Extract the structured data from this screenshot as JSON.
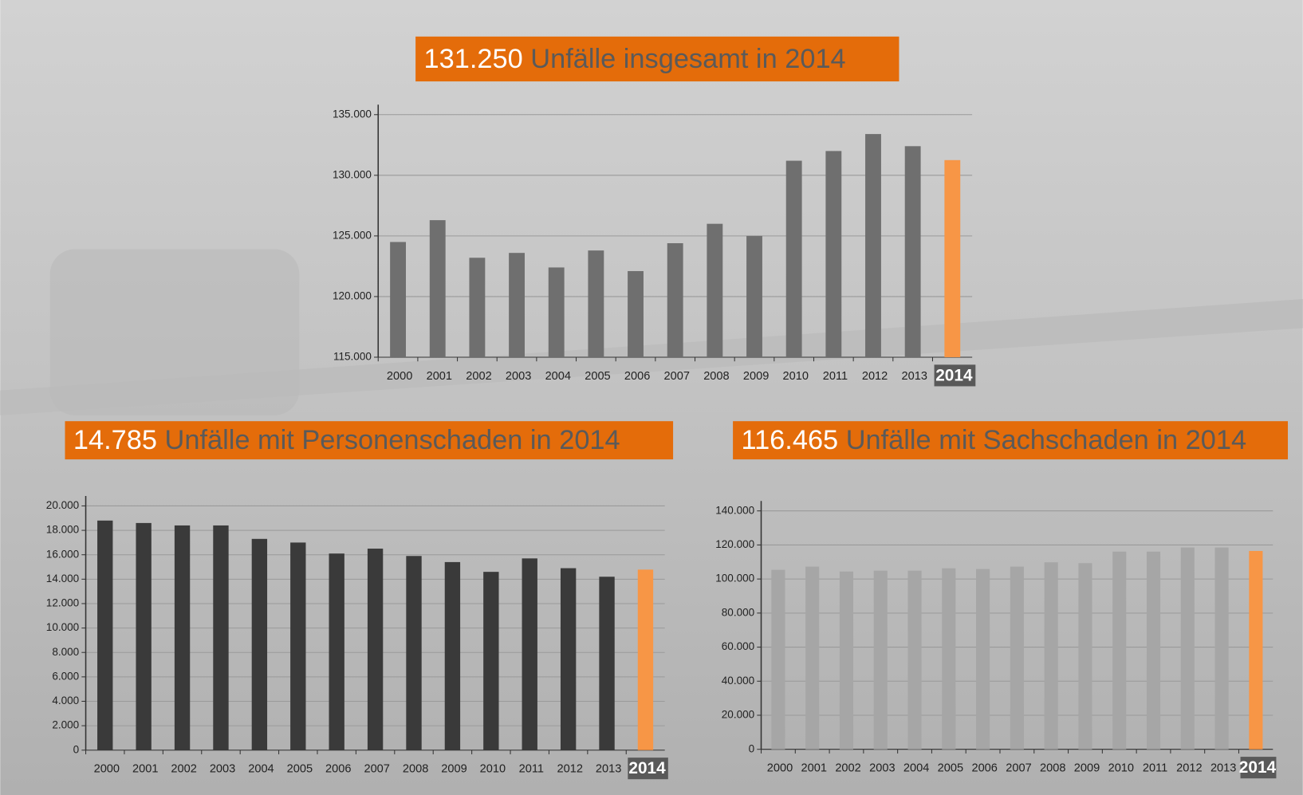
{
  "chart_data": [
    {
      "type": "bar",
      "title_number": "131.250",
      "title": "Unfälle insgesamt in 2014",
      "categories": [
        "2000",
        "2001",
        "2002",
        "2003",
        "2004",
        "2005",
        "2006",
        "2007",
        "2008",
        "2009",
        "2010",
        "2011",
        "2012",
        "2013",
        "2014"
      ],
      "values": [
        124500,
        126300,
        123200,
        123600,
        122400,
        123800,
        122100,
        124400,
        126000,
        125000,
        131200,
        132000,
        133400,
        132400,
        131250
      ],
      "colors": [
        "#6f6f6f",
        "#6f6f6f",
        "#6f6f6f",
        "#6f6f6f",
        "#6f6f6f",
        "#6f6f6f",
        "#6f6f6f",
        "#6f6f6f",
        "#6f6f6f",
        "#6f6f6f",
        "#6f6f6f",
        "#6f6f6f",
        "#6f6f6f",
        "#6f6f6f",
        "#f79646"
      ],
      "ylim": [
        115000,
        135000
      ],
      "yticks": [
        {
          "value": 115000,
          "label": "115.000"
        },
        {
          "value": 120000,
          "label": "120.000"
        },
        {
          "value": 125000,
          "label": "125.000"
        },
        {
          "value": 130000,
          "label": "130.000"
        },
        {
          "value": 135000,
          "label": "135.000"
        }
      ],
      "grid": true
    },
    {
      "type": "bar",
      "title_number": "14.785",
      "title": "Unfälle mit Personenschaden in 2014",
      "categories": [
        "2000",
        "2001",
        "2002",
        "2003",
        "2004",
        "2005",
        "2006",
        "2007",
        "2008",
        "2009",
        "2010",
        "2011",
        "2012",
        "2013",
        "2014"
      ],
      "values": [
        18800,
        18600,
        18400,
        18400,
        17300,
        17000,
        16100,
        16500,
        15900,
        15400,
        14600,
        15700,
        14900,
        14200,
        14785
      ],
      "colors": [
        "#3a3a3a",
        "#3a3a3a",
        "#3a3a3a",
        "#3a3a3a",
        "#3a3a3a",
        "#3a3a3a",
        "#3a3a3a",
        "#3a3a3a",
        "#3a3a3a",
        "#3a3a3a",
        "#3a3a3a",
        "#3a3a3a",
        "#3a3a3a",
        "#3a3a3a",
        "#f79646"
      ],
      "ylim": [
        0,
        20000
      ],
      "yticks": [
        0,
        {
          "value": 2000,
          "label": "2.000"
        },
        {
          "value": 4000,
          "label": "4.000"
        },
        {
          "value": 6000,
          "label": "6.000"
        },
        {
          "value": 8000,
          "label": "8.000"
        },
        {
          "value": 10000,
          "label": "10.000"
        },
        {
          "value": 12000,
          "label": "12.000"
        },
        {
          "value": 14000,
          "label": "14.000"
        },
        {
          "value": 16000,
          "label": "16.000"
        },
        {
          "value": 18000,
          "label": "18.000"
        },
        {
          "value": 20000,
          "label": "20.000"
        }
      ],
      "grid": true
    },
    {
      "type": "bar",
      "title_number": "116.465",
      "title": "Unfälle mit Sachschaden in 2014",
      "categories": [
        "2000",
        "2001",
        "2002",
        "2003",
        "2004",
        "2005",
        "2006",
        "2007",
        "2008",
        "2009",
        "2010",
        "2011",
        "2012",
        "2013",
        "2014"
      ],
      "values": [
        105400,
        107300,
        104400,
        104900,
        104900,
        106300,
        105900,
        107300,
        109800,
        109300,
        116100,
        116100,
        118500,
        118500,
        116465
      ],
      "colors": [
        "#a6a6a6",
        "#a6a6a6",
        "#a6a6a6",
        "#a6a6a6",
        "#a6a6a6",
        "#a6a6a6",
        "#a6a6a6",
        "#a6a6a6",
        "#a6a6a6",
        "#a6a6a6",
        "#a6a6a6",
        "#a6a6a6",
        "#a6a6a6",
        "#a6a6a6",
        "#f79646"
      ],
      "ylim": [
        0,
        140000
      ],
      "yticks": [
        0,
        {
          "value": 20000,
          "label": "20.000"
        },
        {
          "value": 40000,
          "label": "40.000"
        },
        {
          "value": 60000,
          "label": "60.000"
        },
        {
          "value": 80000,
          "label": "80.000"
        },
        {
          "value": 100000,
          "label": "100.000"
        },
        {
          "value": 120000,
          "label": "120.000"
        },
        {
          "value": 140000,
          "label": "140.000"
        }
      ],
      "grid": true
    }
  ]
}
